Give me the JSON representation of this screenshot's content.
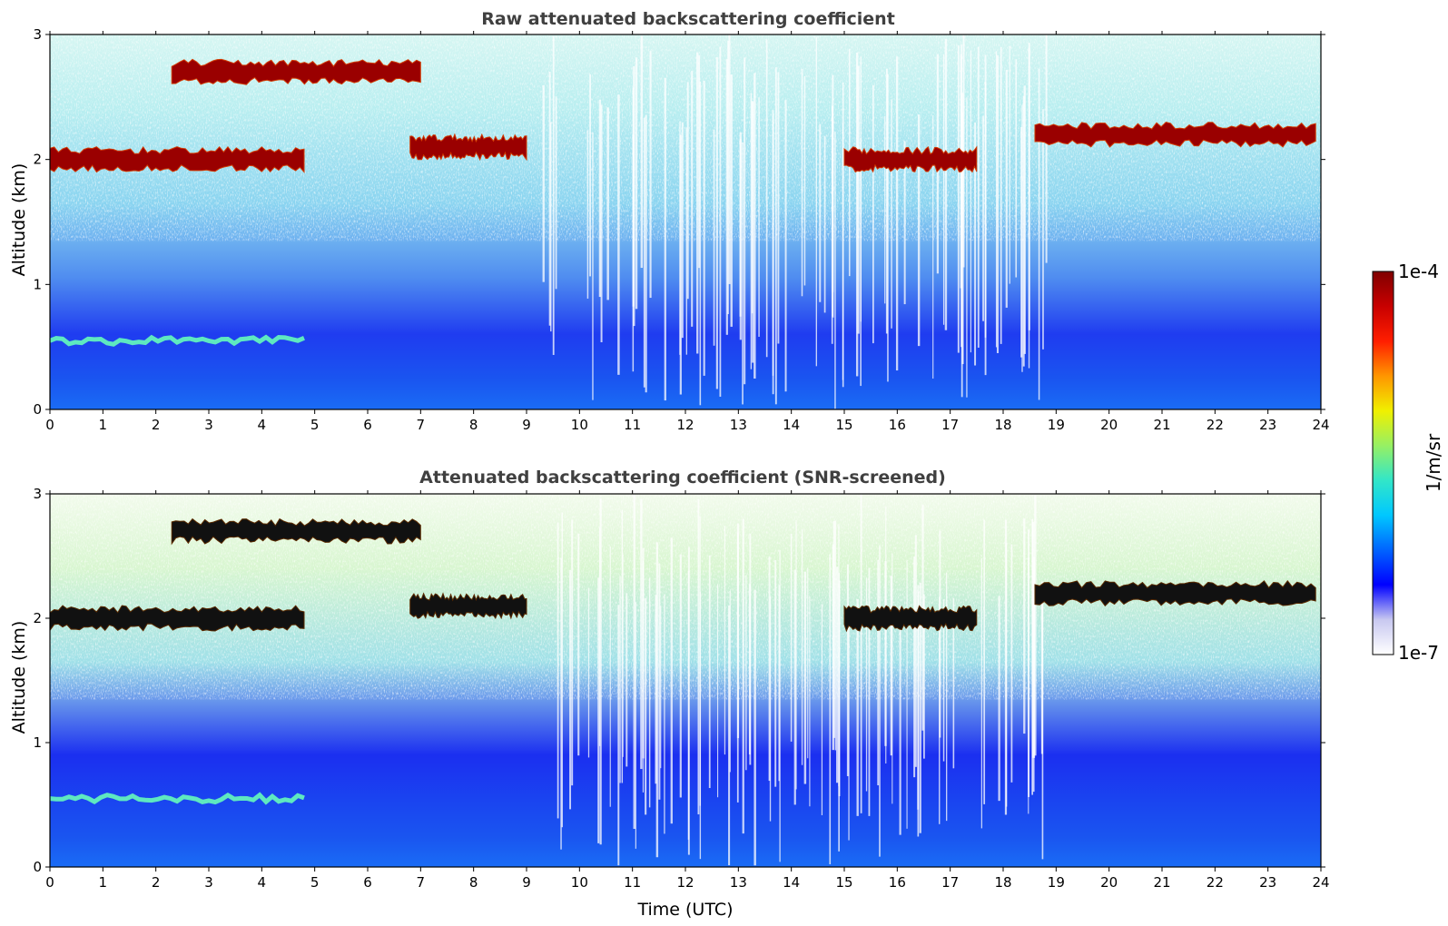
{
  "figure": {
    "xlabel": "Time (UTC)",
    "colorbar": {
      "label": "1/m/sr",
      "max_label": "1e-4",
      "min_label": "1e-7",
      "colormap": [
        "#ffffff",
        "#c8c8f0",
        "#0000ff",
        "#0064ff",
        "#00c8ff",
        "#32e6c8",
        "#96f064",
        "#f0f000",
        "#ff9600",
        "#ff1e00",
        "#c80000",
        "#800000"
      ]
    }
  },
  "chart_data": [
    {
      "type": "heatmap",
      "title": "Raw attenuated backscattering coefficient",
      "xlabel": "",
      "ylabel": "Altitude (km)",
      "xlim": [
        0,
        24
      ],
      "ylim": [
        0,
        3
      ],
      "x_ticks": [
        0,
        1,
        2,
        3,
        4,
        5,
        6,
        7,
        8,
        9,
        10,
        11,
        12,
        13,
        14,
        15,
        16,
        17,
        18,
        19,
        20,
        21,
        22,
        23,
        24
      ],
      "y_ticks": [
        0,
        1,
        2,
        3
      ],
      "color_scale": "log",
      "value_range": [
        1e-07,
        0.0001
      ],
      "features": [
        {
          "kind": "cloud_layer",
          "time_range": [
            0,
            4.8
          ],
          "altitude_km": 2.0
        },
        {
          "kind": "cloud_layer",
          "time_range": [
            2.3,
            7.0
          ],
          "altitude_km": 2.7
        },
        {
          "kind": "cloud_layer",
          "time_range": [
            6.8,
            9.0
          ],
          "altitude_km": 2.1
        },
        {
          "kind": "cloud_layer",
          "time_range": [
            15.0,
            17.5
          ],
          "altitude_km": 2.0
        },
        {
          "kind": "cloud_layer",
          "time_range": [
            18.6,
            23.9
          ],
          "altitude_km": 2.2
        },
        {
          "kind": "boundary_layer_top",
          "time_range": [
            0,
            4.8
          ],
          "altitude_km": 0.55
        }
      ]
    },
    {
      "type": "heatmap",
      "title": "Attenuated backscattering coefficient (SNR-screened)",
      "xlabel": "Time (UTC)",
      "ylabel": "Altitude (km)",
      "xlim": [
        0,
        24
      ],
      "ylim": [
        0,
        3
      ],
      "x_ticks": [
        0,
        1,
        2,
        3,
        4,
        5,
        6,
        7,
        8,
        9,
        10,
        11,
        12,
        13,
        14,
        15,
        16,
        17,
        18,
        19,
        20,
        21,
        22,
        23,
        24
      ],
      "y_ticks": [
        0,
        1,
        2,
        3
      ],
      "color_scale": "log",
      "value_range": [
        1e-07,
        0.0001
      ],
      "features": [
        {
          "kind": "cloud_layer",
          "time_range": [
            0,
            4.8
          ],
          "altitude_km": 2.0
        },
        {
          "kind": "cloud_layer",
          "time_range": [
            2.3,
            7.0
          ],
          "altitude_km": 2.7
        },
        {
          "kind": "cloud_layer",
          "time_range": [
            6.8,
            9.0
          ],
          "altitude_km": 2.1
        },
        {
          "kind": "cloud_layer",
          "time_range": [
            15.0,
            17.5
          ],
          "altitude_km": 2.0
        },
        {
          "kind": "cloud_layer",
          "time_range": [
            18.6,
            23.9
          ],
          "altitude_km": 2.2
        },
        {
          "kind": "boundary_layer_top",
          "time_range": [
            0,
            4.8
          ],
          "altitude_km": 0.55
        }
      ]
    }
  ]
}
